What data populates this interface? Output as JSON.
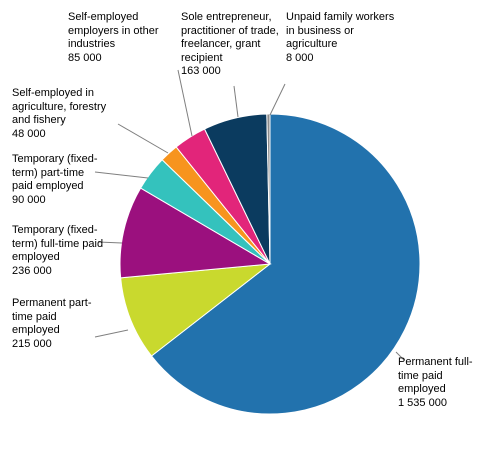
{
  "chart_data": {
    "type": "pie",
    "categories": [
      "Permanent full-time paid employed",
      "Permanent part-time paid employed",
      "Temporary (fixed-term) full-time paid employed",
      "Temporary (fixed-term) part-time paid employed",
      "Self-employed in agriculture, forestry and fishery",
      "Self-employed employers in other industries",
      "Sole entrepreneur, practitioner of trade, freelancer, grant recipient",
      "Unpaid family workers in business or agriculture"
    ],
    "values": [
      1535000,
      215000,
      236000,
      90000,
      48000,
      85000,
      163000,
      8000
    ],
    "value_labels": [
      "1 535 000",
      "215 000",
      "236 000",
      "90 000",
      "48 000",
      "85 000",
      "163 000",
      "8 000"
    ],
    "colors": [
      "#2272ad",
      "#c9d92e",
      "#9b107e",
      "#34c2bd",
      "#f7941e",
      "#e2257a",
      "#0b3b5f",
      "#8c8c8c"
    ]
  }
}
